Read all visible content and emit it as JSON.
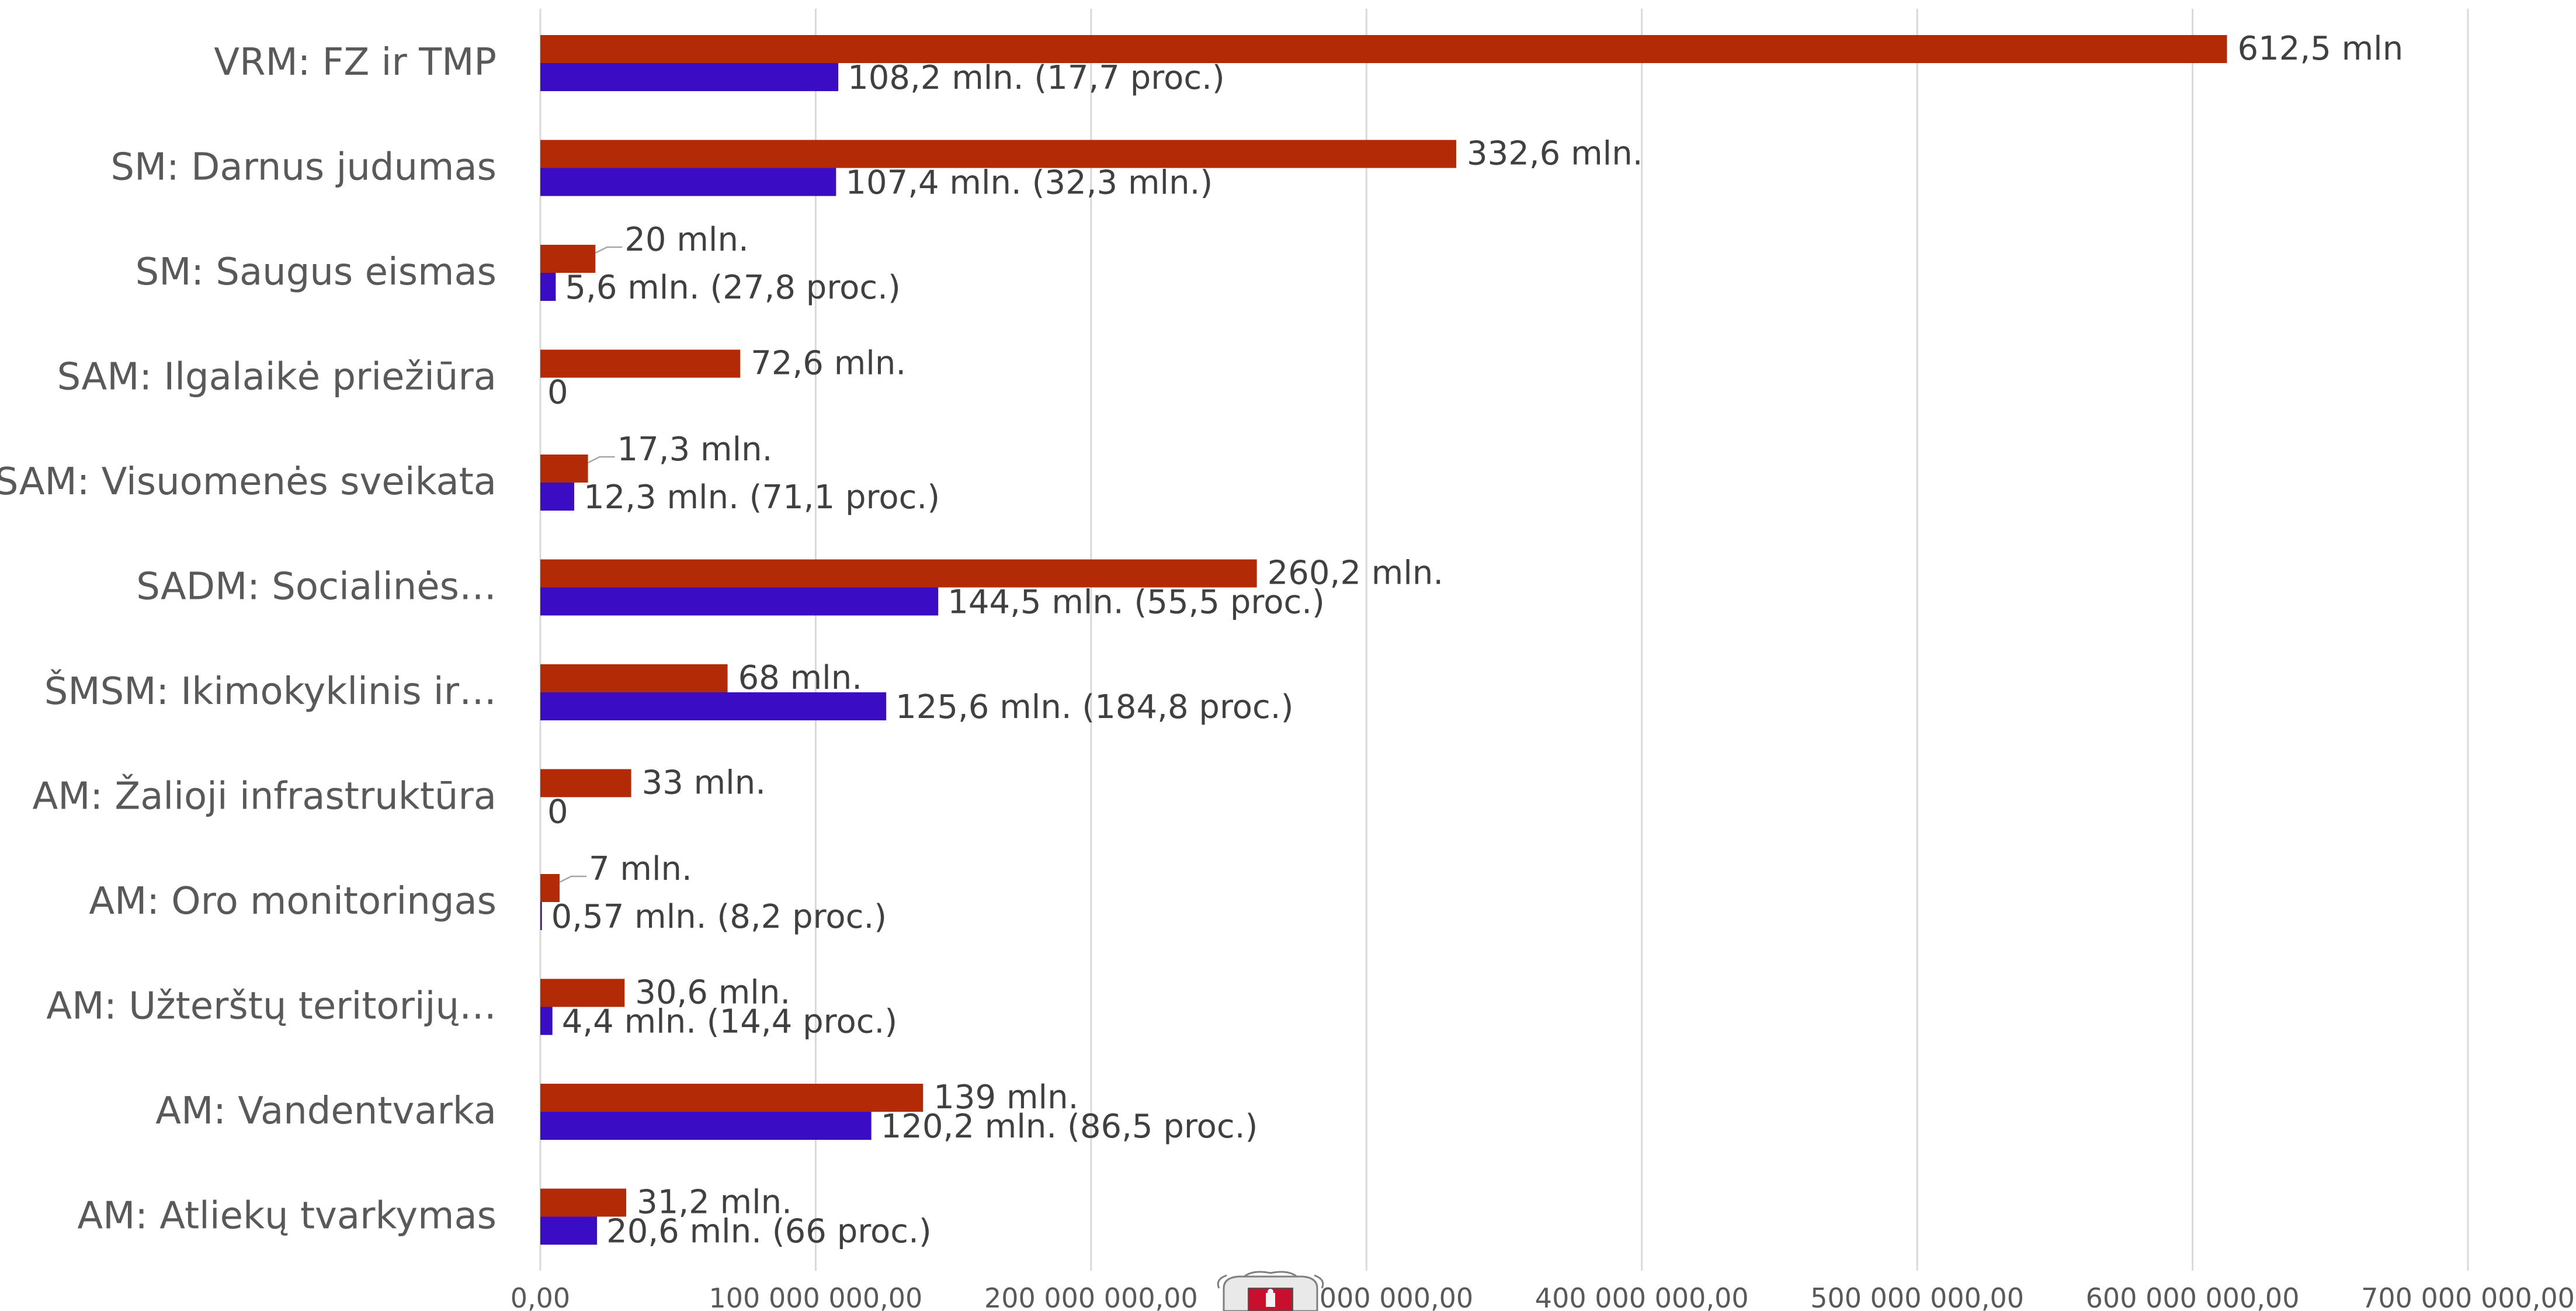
{
  "chart_data": {
    "type": "bar",
    "orientation": "horizontal",
    "categories": [
      "VRM: FZ ir TMP",
      "SM: Darnus judumas",
      "SM: Saugus eismas",
      "SAM: Ilgalaikė priežiūra",
      "SAM: Visuomenės sveikata",
      "SADM: Socialinės…",
      "ŠMSM: Ikimokyklinis ir…",
      "AM: Žalioji infrastruktūra",
      "AM: Oro monitoringas",
      "AM: Užterštų teritorijų…",
      "AM: Vandentvarka",
      "AM: Atliekų tvarkymas"
    ],
    "series": [
      {
        "color": "#b32a07",
        "values": [
          612500000,
          332600000,
          20000000,
          72600000,
          17300000,
          260200000,
          68000000,
          33000000,
          7000000,
          30600000,
          139000000,
          31200000
        ],
        "labels": [
          "612,5 mln",
          "332,6 mln.",
          "20 mln.",
          "72,6 mln.",
          "17,3 mln.",
          "260,2 mln.",
          "68 mln.",
          "33 mln.",
          "7 mln.",
          "30,6 mln.",
          "139 mln.",
          "31,2 mln."
        ]
      },
      {
        "color": "#3a0dc4",
        "values": [
          108200000,
          107400000,
          5600000,
          0,
          12300000,
          144500000,
          125600000,
          0,
          570000,
          4400000,
          120200000,
          20600000
        ],
        "labels": [
          "108,2 mln. (17,7 proc.)",
          "107,4 mln. (32,3 mln.)",
          "5,6 mln. (27,8 proc.)",
          "0",
          "12,3 mln. (71,1 proc.)",
          "144,5 mln. (55,5 proc.)",
          "125,6 mln. (184,8 proc.)",
          "0",
          "0,57 mln. (8,2 proc.)",
          "4,4 mln. (14,4 proc.)",
          "120,2 mln. (86,5 proc.)",
          "20,6 mln. (66 proc.)"
        ]
      }
    ],
    "xlim": [
      0,
      700000000
    ],
    "xticks": [
      0,
      100000000,
      200000000,
      300000000,
      400000000,
      500000000,
      600000000,
      700000000
    ],
    "xtick_labels": [
      "0,00",
      "100 000 000,00",
      "200 000 000,00",
      "300 000 000,00",
      "400 000 000,00",
      "500 000 000,00",
      "600 000 000,00",
      "700 000 000,00"
    ],
    "grid": "vertical",
    "legend": "none",
    "title": "",
    "xlabel": "",
    "ylabel": ""
  }
}
